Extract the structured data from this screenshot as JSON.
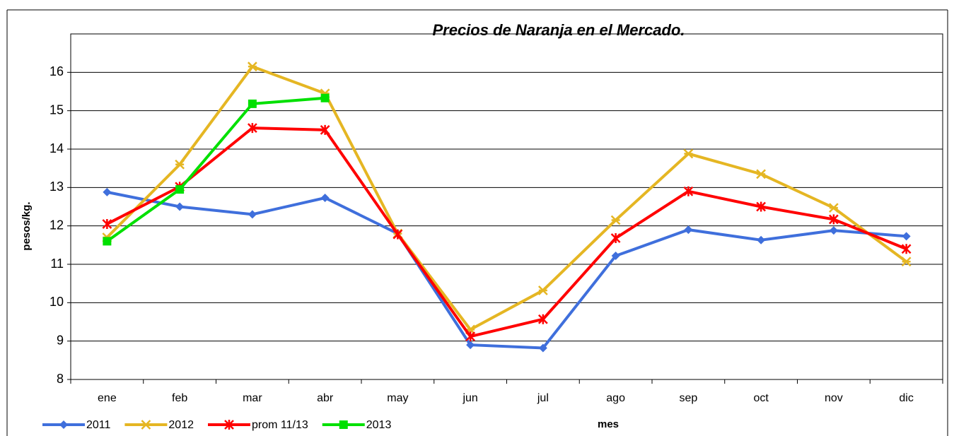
{
  "chart_data": {
    "type": "line",
    "title": "Precios de Naranja en el Mercado.",
    "x_label": "mes",
    "y_label": "pesos/kg.",
    "categories": [
      "ene",
      "feb",
      "mar",
      "abr",
      "may",
      "jun",
      "jul",
      "ago",
      "sep",
      "oct",
      "nov",
      "dic"
    ],
    "series": [
      {
        "name": "2011",
        "color": "#3f6fdc",
        "marker": "diamond",
        "values": [
          12.88,
          12.5,
          12.3,
          12.73,
          11.8,
          8.9,
          8.82,
          11.22,
          11.9,
          11.63,
          11.88,
          11.73
        ]
      },
      {
        "name": "2012",
        "color": "#e5b623",
        "marker": "star",
        "values": [
          11.7,
          13.6,
          16.15,
          15.45,
          11.8,
          9.3,
          10.32,
          12.15,
          13.88,
          13.35,
          12.47,
          11.07
        ]
      },
      {
        "name": "prom 11/13",
        "color": "#ff0000",
        "marker": "asterisk",
        "values": [
          12.05,
          13.02,
          14.55,
          14.5,
          11.78,
          9.12,
          9.57,
          11.68,
          12.9,
          12.5,
          12.17,
          11.4
        ]
      },
      {
        "name": "2013",
        "color": "#00e000",
        "marker": "square",
        "values": [
          11.6,
          12.95,
          15.18,
          15.33,
          null,
          null,
          null,
          null,
          null,
          null,
          null,
          null
        ]
      }
    ],
    "ylim": [
      8,
      17
    ],
    "yticks": [
      8,
      9,
      10,
      11,
      12,
      13,
      14,
      15,
      16
    ],
    "grid": true,
    "legend": "bottom-left"
  }
}
